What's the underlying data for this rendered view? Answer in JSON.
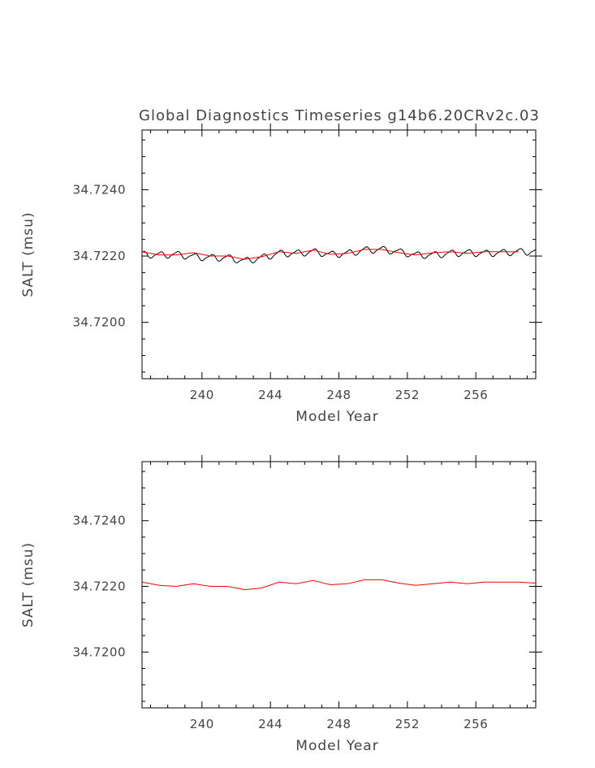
{
  "figure": {
    "title": "Global Diagnostics Timeseries g14b6.20CRv2c.03"
  },
  "chart_data": [
    {
      "type": "line",
      "xlabel": "Model Year",
      "ylabel": "SALT (msu)",
      "xlim": [
        236.5,
        259.5
      ],
      "ylim": [
        34.7183,
        34.7258
      ],
      "xticks": [
        "240",
        "244",
        "248",
        "252",
        "256"
      ],
      "yticks": [
        "34.7200",
        "34.7220",
        "34.7240"
      ],
      "series": [
        {
          "color": "#000000",
          "style": "monthly",
          "x": [
            236.5,
            259.5
          ],
          "mean": [
            [
              236.5,
              34.72205
            ],
            [
              237.5,
              34.72203
            ],
            [
              238.5,
              34.72205
            ],
            [
              239.5,
              34.72198
            ],
            [
              240.5,
              34.72195
            ],
            [
              241.5,
              34.72195
            ],
            [
              242.5,
              34.72185
            ],
            [
              243.5,
              34.72195
            ],
            [
              244.5,
              34.72208
            ],
            [
              245.5,
              34.72208
            ],
            [
              246.5,
              34.72213
            ],
            [
              247.5,
              34.72205
            ],
            [
              248.5,
              34.72208
            ],
            [
              249.5,
              34.72218
            ],
            [
              250.5,
              34.7222
            ],
            [
              251.5,
              34.72213
            ],
            [
              252.5,
              34.72203
            ],
            [
              253.5,
              34.72203
            ],
            [
              254.5,
              34.72208
            ],
            [
              255.5,
              34.7221
            ],
            [
              256.5,
              34.72208
            ],
            [
              257.5,
              34.7221
            ],
            [
              258.5,
              34.72213
            ],
            [
              259.5,
              34.72213
            ]
          ],
          "amplitude": 0.0001
        },
        {
          "color": "#ff0000",
          "style": "annual",
          "x": [
            236.5,
            237.5,
            238.5,
            239.5,
            240.5,
            241.5,
            242.5,
            243.5,
            244.5,
            245.5,
            246.5,
            247.5,
            248.5,
            249.5,
            250.5,
            251.5,
            252.5,
            253.5,
            254.5,
            255.5,
            256.5,
            257.5,
            258.5
          ],
          "y": [
            34.72213,
            34.72203,
            34.72203,
            34.7221,
            34.722,
            34.722,
            34.7219,
            34.72198,
            34.72213,
            34.72208,
            34.72218,
            34.72205,
            34.72208,
            34.7222,
            34.7222,
            34.7221,
            34.72203,
            34.7221,
            34.72213,
            34.72208,
            34.72213,
            34.72213,
            34.72213
          ]
        }
      ]
    },
    {
      "type": "line",
      "xlabel": "Model Year",
      "ylabel": "SALT (msu)",
      "xlim": [
        236.5,
        259.5
      ],
      "ylim": [
        34.7183,
        34.7258
      ],
      "xticks": [
        "240",
        "244",
        "248",
        "252",
        "256"
      ],
      "yticks": [
        "34.7200",
        "34.7220",
        "34.7240"
      ],
      "series": [
        {
          "color": "#ff0000",
          "style": "annual",
          "x": [
            236.5,
            237.5,
            238.5,
            239.5,
            240.5,
            241.5,
            242.5,
            243.5,
            244.5,
            245.5,
            246.5,
            247.5,
            248.5,
            249.5,
            250.5,
            251.5,
            252.5,
            253.5,
            254.5,
            255.5,
            256.5,
            257.5,
            258.5,
            259.5
          ],
          "y": [
            34.72213,
            34.72203,
            34.722,
            34.72208,
            34.722,
            34.722,
            34.7219,
            34.72195,
            34.72213,
            34.72208,
            34.72218,
            34.72205,
            34.72208,
            34.7222,
            34.7222,
            34.7221,
            34.72203,
            34.72208,
            34.72213,
            34.72208,
            34.72213,
            34.72213,
            34.72213,
            34.7221
          ]
        }
      ]
    }
  ]
}
